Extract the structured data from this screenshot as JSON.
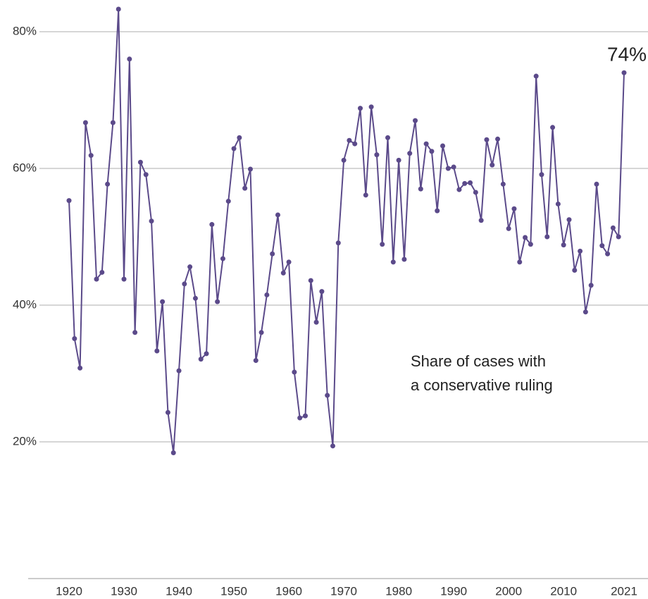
{
  "chart_data": {
    "type": "line",
    "annotation": [
      "Share of cases with",
      "a conservative ruling"
    ],
    "x": [
      1920,
      1921,
      1922,
      1923,
      1924,
      1925,
      1926,
      1927,
      1928,
      1929,
      1930,
      1931,
      1932,
      1933,
      1934,
      1935,
      1936,
      1937,
      1938,
      1939,
      1940,
      1941,
      1942,
      1943,
      1944,
      1945,
      1946,
      1947,
      1948,
      1949,
      1950,
      1951,
      1952,
      1953,
      1954,
      1955,
      1956,
      1957,
      1958,
      1959,
      1960,
      1961,
      1962,
      1963,
      1964,
      1965,
      1966,
      1967,
      1968,
      1969,
      1970,
      1971,
      1972,
      1973,
      1974,
      1975,
      1976,
      1977,
      1978,
      1979,
      1980,
      1981,
      1982,
      1983,
      1984,
      1985,
      1986,
      1987,
      1988,
      1989,
      1990,
      1991,
      1992,
      1993,
      1994,
      1995,
      1996,
      1997,
      1998,
      1999,
      2000,
      2001,
      2002,
      2003,
      2004,
      2005,
      2006,
      2007,
      2008,
      2009,
      2010,
      2011,
      2012,
      2013,
      2014,
      2015,
      2016,
      2017,
      2018,
      2019,
      2020,
      2021
    ],
    "series": [
      {
        "name": "Share of cases with a conservative ruling",
        "color": "#5b4a8a",
        "values": [
          55.3,
          35.1,
          30.8,
          66.7,
          61.9,
          43.8,
          44.8,
          57.7,
          66.7,
          83.3,
          43.8,
          76.0,
          36.0,
          60.9,
          59.1,
          52.3,
          33.3,
          40.5,
          24.3,
          18.4,
          30.4,
          43.1,
          45.6,
          41.0,
          32.1,
          32.9,
          51.8,
          40.5,
          46.8,
          55.2,
          62.9,
          64.5,
          57.1,
          59.9,
          31.9,
          36.0,
          41.5,
          47.5,
          53.2,
          44.7,
          46.3,
          30.2,
          23.5,
          23.8,
          43.6,
          37.5,
          42.0,
          26.8,
          19.4,
          49.1,
          61.2,
          64.1,
          63.6,
          68.8,
          56.1,
          69.0,
          62.0,
          48.9,
          64.5,
          46.3,
          61.2,
          46.7,
          62.2,
          67.0,
          57.0,
          63.6,
          62.5,
          53.8,
          63.3,
          60.0,
          60.2,
          56.9,
          57.8,
          57.9,
          56.5,
          52.4,
          64.2,
          60.5,
          64.3,
          57.7,
          51.2,
          54.1,
          46.3,
          49.9,
          48.9,
          73.5,
          59.1,
          50.0,
          66.0,
          54.8,
          48.8,
          52.5,
          45.1,
          47.9,
          39.0,
          42.9,
          57.7,
          48.7,
          47.5,
          51.3,
          50.0,
          74.0
        ],
        "value_labels": [
          null,
          null,
          null,
          null,
          null,
          null,
          null,
          null,
          null,
          null,
          null,
          null,
          null,
          null,
          null,
          null,
          null,
          null,
          null,
          null,
          null,
          null,
          null,
          null,
          null,
          null,
          null,
          null,
          null,
          null,
          null,
          null,
          null,
          null,
          null,
          null,
          null,
          null,
          null,
          null,
          null,
          null,
          null,
          null,
          null,
          null,
          null,
          null,
          null,
          null,
          null,
          null,
          null,
          null,
          null,
          null,
          null,
          null,
          null,
          null,
          null,
          null,
          null,
          null,
          null,
          null,
          null,
          null,
          null,
          null,
          null,
          null,
          null,
          null,
          null,
          null,
          null,
          null,
          null,
          null,
          null,
          null,
          null,
          null,
          null,
          null,
          null,
          null,
          null,
          null,
          null,
          null,
          null,
          null,
          null,
          null,
          null,
          null,
          null,
          null,
          null,
          "74%"
        ]
      }
    ],
    "xlim": [
      1920,
      2021
    ],
    "xticks": [
      1920,
      1930,
      1940,
      1950,
      1960,
      1970,
      1980,
      1990,
      2000,
      2010,
      2021
    ],
    "ylim": [
      0,
      85
    ],
    "yticks": [
      {
        "value": 20,
        "label": "20%"
      },
      {
        "value": 40,
        "label": "40%"
      },
      {
        "value": 60,
        "label": "60%"
      },
      {
        "value": 80,
        "label": "80%"
      }
    ],
    "grid": true
  }
}
